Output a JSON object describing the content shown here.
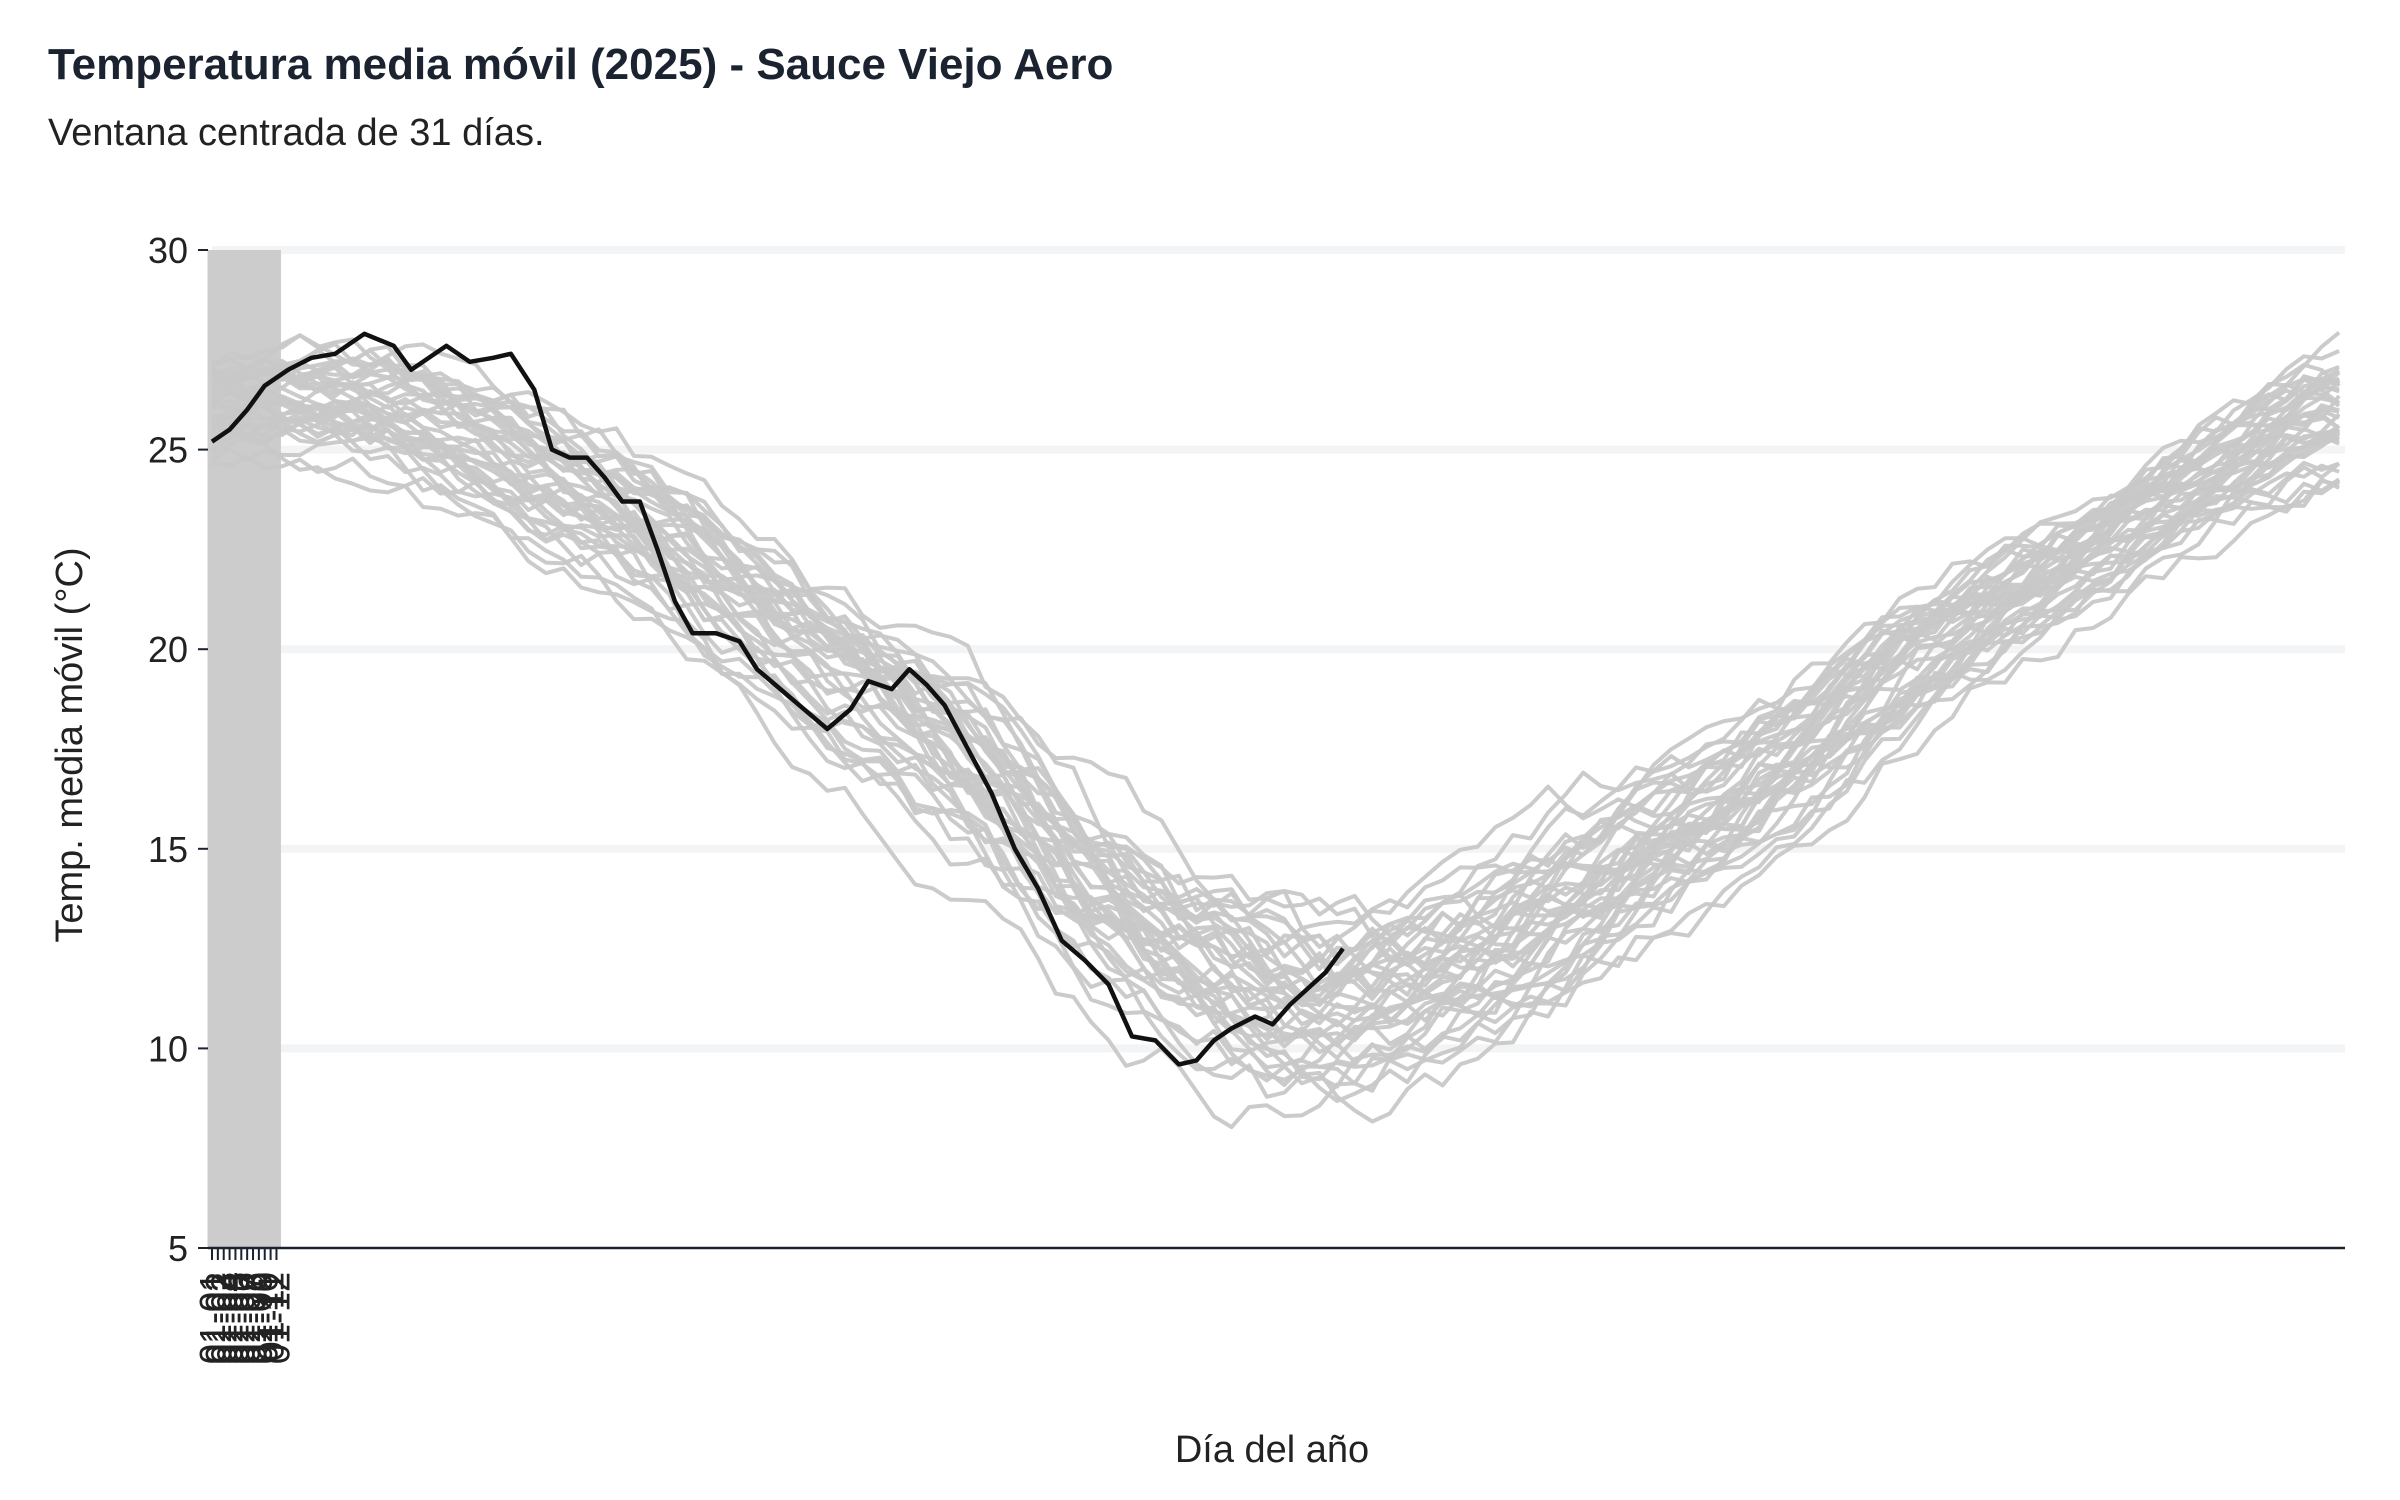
{
  "chart_data": {
    "type": "line",
    "title": "Temperatura media móvil (2025) - Sauce Viejo Aero",
    "subtitle": "Ventana centrada de 31 días.",
    "xlabel": "Día del año",
    "ylabel": "Temp. media móvil (°C)",
    "ylim": [
      5,
      30
    ],
    "yticks": [
      5,
      10,
      15,
      20,
      25,
      30
    ],
    "xticks": [
      "01-01",
      "01-02",
      "01-03",
      "01-04",
      "01-05",
      "01-06",
      "01-07",
      "01-08",
      "01-09",
      "01-10",
      "01-11",
      "01-12"
    ],
    "xlim": [
      "01-01",
      "12-31"
    ],
    "grid": "vertical month lines, light horizontal lines",
    "colors": {
      "history": "#c8c8c8",
      "current": "#111111",
      "grid_vertical": "#cccccc",
      "grid_horizontal": "#f2f4f5",
      "axis": "#1b2330"
    },
    "history_band": {
      "description": "Multiple previous years drawn in gray",
      "x": [
        "01-01",
        "01-15",
        "02-01",
        "02-15",
        "03-01",
        "03-15",
        "04-01",
        "04-15",
        "05-01",
        "05-15",
        "06-01",
        "06-15",
        "07-01",
        "07-15",
        "08-01",
        "08-15",
        "09-01",
        "09-15",
        "10-01",
        "10-15",
        "11-01",
        "11-15",
        "12-01",
        "12-15",
        "12-31"
      ],
      "center": [
        26.0,
        26.2,
        25.8,
        25.0,
        24.0,
        23.0,
        21.0,
        19.5,
        18.0,
        16.2,
        13.5,
        12.0,
        11.0,
        10.8,
        11.5,
        12.8,
        14.5,
        15.8,
        17.5,
        19.2,
        20.8,
        22.0,
        23.5,
        24.8,
        25.8
      ],
      "spread": [
        1.2,
        1.3,
        1.4,
        1.4,
        1.5,
        1.6,
        1.6,
        1.7,
        1.7,
        1.8,
        1.9,
        2.0,
        2.1,
        2.0,
        2.0,
        1.9,
        1.8,
        1.7,
        1.6,
        1.5,
        1.4,
        1.3,
        1.3,
        1.4,
        1.5
      ]
    },
    "series": [
      {
        "name": "2025",
        "x": [
          "01-01",
          "01-04",
          "01-07",
          "01-10",
          "01-14",
          "01-18",
          "01-22",
          "01-27",
          "02-01",
          "02-04",
          "02-07",
          "02-10",
          "02-14",
          "02-18",
          "02-21",
          "02-25",
          "02-28",
          "03-03",
          "03-06",
          "03-09",
          "03-12",
          "03-15",
          "03-18",
          "03-21",
          "03-24",
          "03-28",
          "04-01",
          "04-04",
          "04-08",
          "04-12",
          "04-16",
          "04-20",
          "04-23",
          "04-27",
          "04-30",
          "05-03",
          "05-06",
          "05-10",
          "05-14",
          "05-18",
          "05-22",
          "05-26",
          "05-30",
          "06-03",
          "06-07",
          "06-11",
          "06-15",
          "06-18",
          "06-21",
          "06-24",
          "06-28",
          "07-01",
          "07-04",
          "07-07",
          "07-10",
          "07-13"
        ],
        "y": [
          25.2,
          25.5,
          26.0,
          26.6,
          27.0,
          27.3,
          27.4,
          27.9,
          27.6,
          27.0,
          27.3,
          27.6,
          27.2,
          27.3,
          27.4,
          26.5,
          25.0,
          24.8,
          24.8,
          24.3,
          23.7,
          23.7,
          22.5,
          21.2,
          20.4,
          20.4,
          20.2,
          19.5,
          19.0,
          18.5,
          18.0,
          18.5,
          19.2,
          19.0,
          19.5,
          19.1,
          18.6,
          17.5,
          16.4,
          15.0,
          14.0,
          12.7,
          12.2,
          11.6,
          10.3,
          10.2,
          9.6,
          9.7,
          10.2,
          10.5,
          10.8,
          10.6,
          11.1,
          11.5,
          11.9,
          12.5
        ]
      }
    ]
  }
}
